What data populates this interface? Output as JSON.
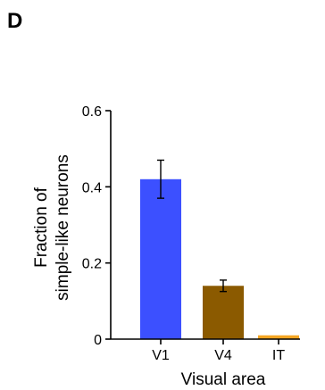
{
  "panel_label": "D",
  "chart_data": {
    "type": "bar",
    "categories": [
      "V1",
      "V4",
      "IT"
    ],
    "values": [
      0.42,
      0.14,
      0.01
    ],
    "errors": [
      0.05,
      0.015,
      0.0
    ],
    "colors": [
      "#3c50ff",
      "#8b5a00",
      "#f5a623"
    ],
    "xlabel": "Visual area",
    "ylabel": [
      "Fraction of",
      "simple-like neurons"
    ],
    "ylim": [
      0,
      0.6
    ],
    "yticks": [
      0,
      0.2,
      0.4,
      0.6
    ],
    "ytick_labels": [
      "0",
      "0.2",
      "0.4",
      "0.6"
    ],
    "grid": false
  }
}
